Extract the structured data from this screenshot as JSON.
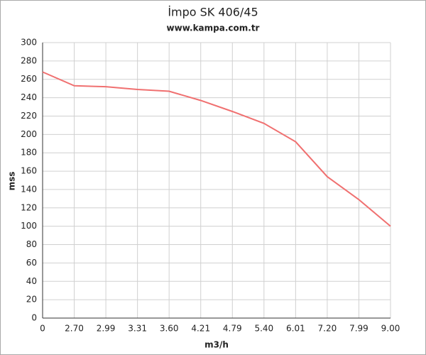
{
  "chart_data": {
    "type": "line",
    "title": "İmpo SK 406/45",
    "subtitle": "www.kampa.com.tr",
    "x_label": "m3/h",
    "y_label": "mss",
    "categories": [
      "0",
      "2.70",
      "2.99",
      "3.31",
      "3.60",
      "4.21",
      "4.79",
      "5.40",
      "6.01",
      "7.20",
      "7.99",
      "9.00"
    ],
    "values": [
      268,
      253,
      252,
      249,
      247,
      237,
      225,
      212,
      192,
      154,
      129,
      100
    ],
    "color": "#f07070",
    "ylim": [
      0,
      300
    ],
    "yticks": [
      0,
      20,
      40,
      60,
      80,
      100,
      120,
      140,
      160,
      180,
      200,
      220,
      240,
      260,
      280,
      300
    ],
    "grid": true
  }
}
